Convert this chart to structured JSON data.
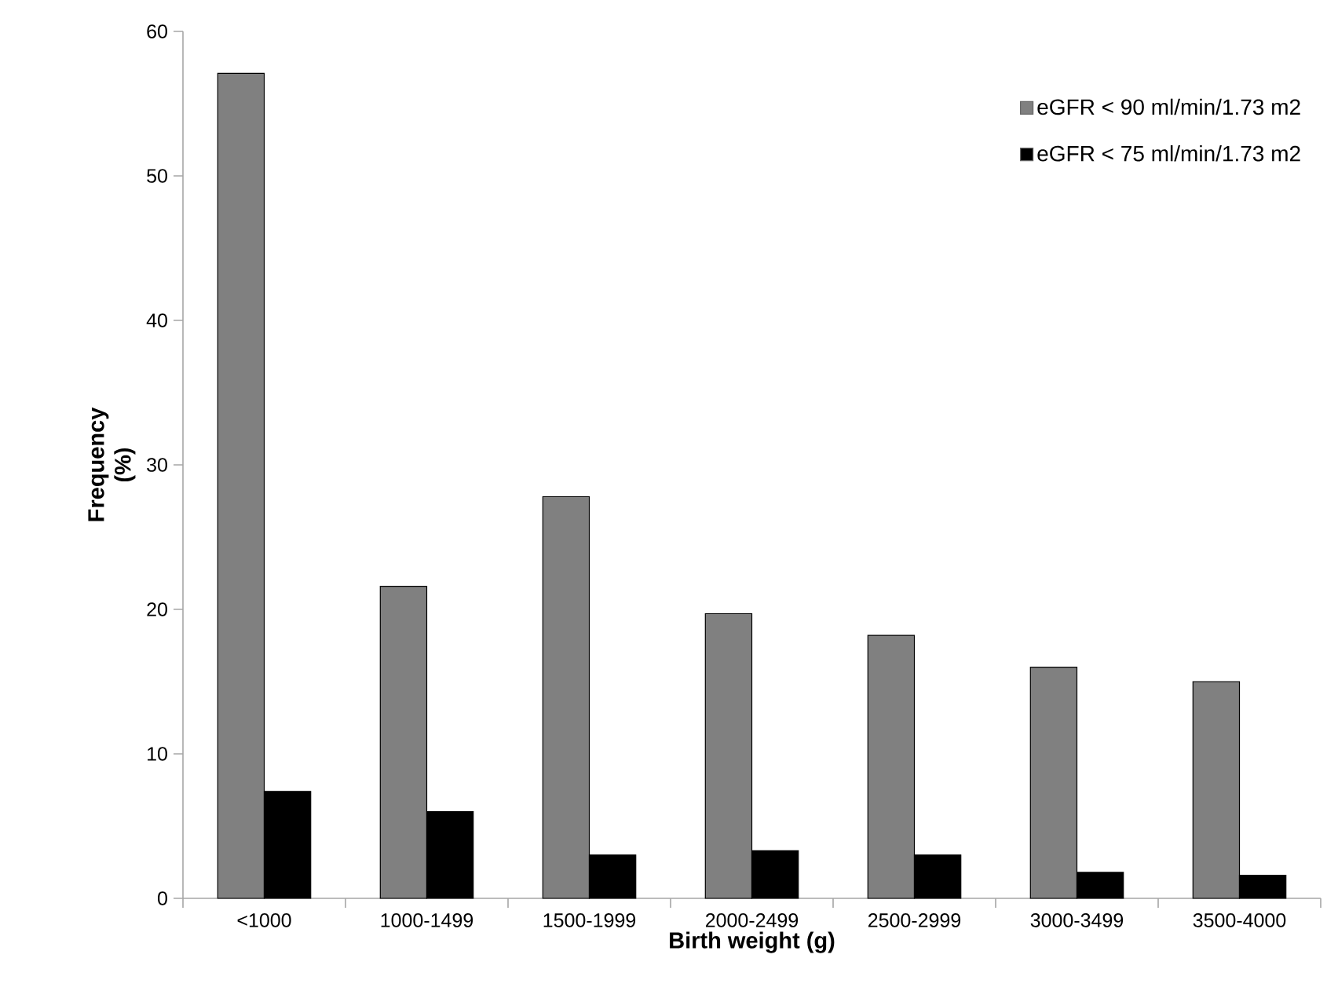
{
  "chart_data": {
    "type": "bar",
    "xlabel": "Birth weight (g)",
    "ylabel": "Frequency (%)",
    "categories": [
      "<1000",
      "1000-1499",
      "1500-1999",
      "2000-2499",
      "2500-2999",
      "3000-3499",
      "3500-4000"
    ],
    "series": [
      {
        "name": "eGFR < 90 ml/min/1.73 m2",
        "color": "#808080",
        "values": [
          57.1,
          21.6,
          27.8,
          19.7,
          18.2,
          16.0,
          15.0
        ]
      },
      {
        "name": "eGFR < 75 ml/min/1.73 m2",
        "color": "#000000",
        "values": [
          7.4,
          6.0,
          3.0,
          3.3,
          3.0,
          1.8,
          1.6
        ]
      }
    ],
    "ylim": [
      0,
      60
    ],
    "yticks": [
      0,
      10,
      20,
      30,
      40,
      50,
      60
    ],
    "legend": "top right",
    "grid": false
  }
}
